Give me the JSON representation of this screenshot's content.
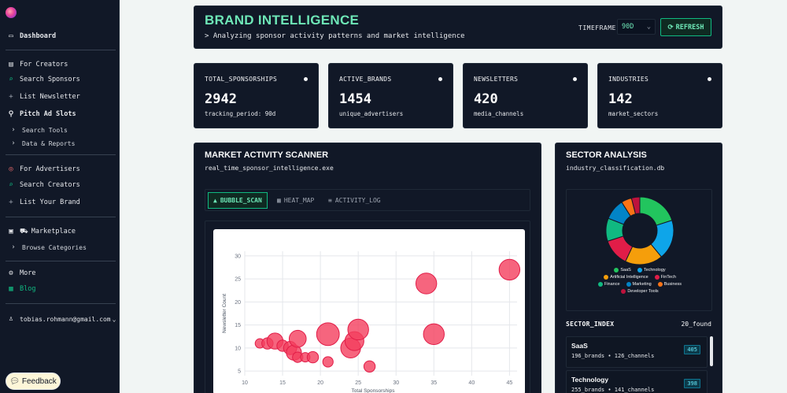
{
  "sidebar": {
    "dashboard": "Dashboard",
    "creators_section": "For Creators",
    "search_sponsors": "Search Sponsors",
    "list_newsletter": "List Newsletter",
    "pitch_ad_slots": "Pitch Ad Slots",
    "search_tools": "Search Tools",
    "data_reports": "Data & Reports",
    "advertisers_section": "For Advertisers",
    "search_creators": "Search Creators",
    "list_your_brand": "List Your Brand",
    "marketplace": "Marketplace",
    "browse_categories": "Browse Categories",
    "more": "More",
    "blog": "Blog",
    "user_email": "tobias.rohmann@gmail.com",
    "feedback": "Feedback"
  },
  "header": {
    "title": "BRAND INTELLIGENCE",
    "subtitle": "> Analyzing sponsor activity patterns and market intelligence",
    "timeframe_label": "TIMEFRAME",
    "timeframe_value": "90D",
    "refresh_label": "REFRESH"
  },
  "stats": [
    {
      "label": "TOTAL_SPONSORSHIPS",
      "value": "2942",
      "sub": "tracking_period: 90d"
    },
    {
      "label": "ACTIVE_BRANDS",
      "value": "1454",
      "sub": "unique_advertisers"
    },
    {
      "label": "NEWSLETTERS",
      "value": "420",
      "sub": "media_channels"
    },
    {
      "label": "INDUSTRIES",
      "value": "142",
      "sub": "market_sectors"
    }
  ],
  "scanner": {
    "title": "MARKET ACTIVITY SCANNER",
    "subtitle": "real_time_sponsor_intelligence.exe",
    "tabs": [
      "BUBBLE_SCAN",
      "HEAT_MAP",
      "ACTIVITY_LOG"
    ]
  },
  "chart_data": {
    "type": "scatter",
    "xlabel": "Total Sponsorships",
    "ylabel": "Newsletter Count",
    "xlim": [
      10,
      46
    ],
    "ylim": [
      4,
      31
    ],
    "xticks": [
      10,
      15,
      20,
      25,
      30,
      35,
      40,
      45
    ],
    "yticks": [
      5,
      10,
      15,
      20,
      25,
      30
    ],
    "grid": true,
    "color": "#f43f5e",
    "points": [
      {
        "x": 12,
        "y": 11,
        "r": 1
      },
      {
        "x": 13,
        "y": 11,
        "r": 1.2
      },
      {
        "x": 14,
        "y": 11.5,
        "r": 1.7
      },
      {
        "x": 15,
        "y": 10.5,
        "r": 1.2
      },
      {
        "x": 16,
        "y": 10,
        "r": 1.4
      },
      {
        "x": 16.5,
        "y": 9,
        "r": 1.6
      },
      {
        "x": 17,
        "y": 12,
        "r": 1.8
      },
      {
        "x": 17,
        "y": 8,
        "r": 1.1
      },
      {
        "x": 18,
        "y": 8,
        "r": 1
      },
      {
        "x": 19,
        "y": 8,
        "r": 1.2
      },
      {
        "x": 21,
        "y": 13,
        "r": 2.4
      },
      {
        "x": 21,
        "y": 7,
        "r": 1.1
      },
      {
        "x": 24,
        "y": 10,
        "r": 2.1
      },
      {
        "x": 24.5,
        "y": 11.5,
        "r": 2
      },
      {
        "x": 25,
        "y": 14,
        "r": 2.2
      },
      {
        "x": 26.5,
        "y": 6,
        "r": 1.2
      },
      {
        "x": 34,
        "y": 24,
        "r": 2.2
      },
      {
        "x": 35,
        "y": 13,
        "r": 2.2
      },
      {
        "x": 45,
        "y": 27,
        "r": 2.2
      }
    ]
  },
  "sectors": {
    "title": "SECTOR ANALYSIS",
    "subtitle": "industry_classification.db",
    "chart_data": {
      "type": "pie",
      "labels": [
        "SaaS",
        "Technology",
        "Artificial Intelligence",
        "FinTech",
        "Finance",
        "Marketing",
        "Business",
        "Developer Tools"
      ],
      "values": [
        20,
        19,
        18,
        13,
        11,
        10,
        5,
        4
      ],
      "colors": [
        "#22c55e",
        "#0ea5e9",
        "#f59e0b",
        "#e11d48",
        "#10b981",
        "#0284c7",
        "#f97316",
        "#be123c"
      ]
    },
    "index_label": "SECTOR_INDEX",
    "found": "20_found",
    "items": [
      {
        "name": "SaaS",
        "meta": "196_brands • 126_channels",
        "badge": "405"
      },
      {
        "name": "Technology",
        "meta": "255_brands • 141_channels",
        "badge": "398"
      }
    ]
  }
}
